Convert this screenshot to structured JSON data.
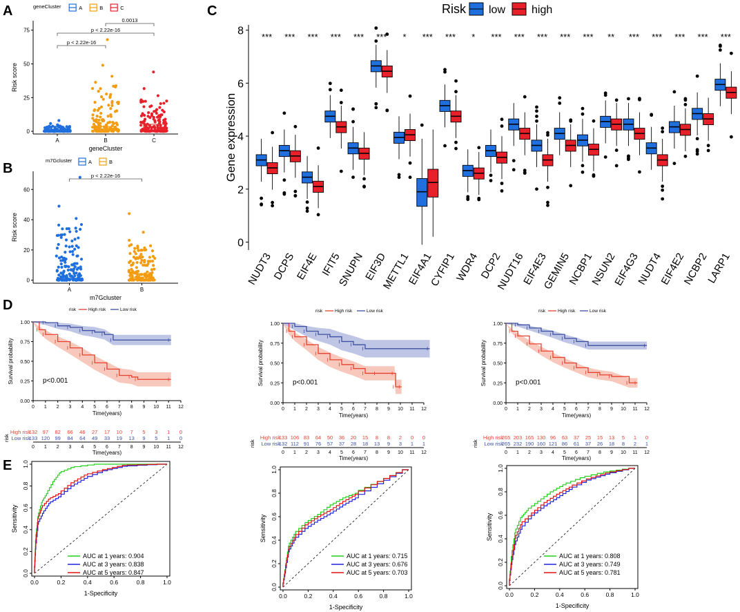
{
  "colors": {
    "blue": "#1f6fde",
    "orange": "#f39c12",
    "red": "#e8202a",
    "km_high": "#e8402e",
    "km_low": "#3d4fa0",
    "km_high_band": "#f4b6a4",
    "km_low_band": "#aab3dc",
    "roc_green": "#22d11a",
    "roc_blue": "#2020d8",
    "roc_red": "#e01010"
  },
  "chart_data": [
    {
      "panel": "A",
      "type": "scatter",
      "legend_title": "geneCluster",
      "legend": [
        "A",
        "B",
        "C"
      ],
      "categories": [
        "A",
        "B",
        "C"
      ],
      "xlabel": "geneCluster",
      "ylabel": "Risk score",
      "ylim": [
        -2,
        82
      ],
      "yticks": [
        0,
        25,
        50,
        75
      ],
      "medians": [
        0.8,
        1.8,
        3.0
      ],
      "q1": [
        0.3,
        0.6,
        0.9
      ],
      "q3": [
        1.2,
        3.6,
        5.2
      ],
      "maxima": [
        8,
        68,
        44
      ],
      "comparisons": [
        {
          "from": "A",
          "to": "B",
          "label": "p < 2.22e-16"
        },
        {
          "from": "A",
          "to": "C",
          "label": "p < 2.22e-16"
        },
        {
          "from": "B",
          "to": "C",
          "label": "0.0013"
        }
      ]
    },
    {
      "panel": "B",
      "type": "scatter",
      "legend_title": "m7Gcluster",
      "legend": [
        "A",
        "B"
      ],
      "categories": [
        "A",
        "B"
      ],
      "xlabel": "m7Gcluster",
      "ylabel": "Risk score",
      "ylim": [
        -2,
        72
      ],
      "yticks": [
        0,
        20,
        40,
        60
      ],
      "medians": [
        0.8,
        2.0
      ],
      "q1": [
        0.3,
        0.7
      ],
      "q3": [
        1.3,
        4.0
      ],
      "maxima": [
        68,
        44
      ],
      "comparisons": [
        {
          "from": "A",
          "to": "B",
          "label": "p < 2.22e-16"
        }
      ]
    },
    {
      "panel": "C",
      "type": "box",
      "legend_title": "Risk",
      "series": [
        "low",
        "high"
      ],
      "ylabel": "Gene expression",
      "ylim": [
        -0.3,
        8.2
      ],
      "yticks": [
        0,
        2,
        4,
        6,
        8
      ],
      "genes": [
        "NUDT3",
        "DCPS",
        "EIF4E",
        "IFIT5",
        "SNUPN",
        "EIF3D",
        "METTL1",
        "EIF4A1",
        "CYFIP1",
        "WDR4",
        "DCP2",
        "NUDT16",
        "EIF4E3",
        "GEMIN5",
        "NCBP1",
        "NSUN2",
        "EIF4G3",
        "NUDT4",
        "EIF4E2",
        "NCBP2",
        "LARP1"
      ],
      "significance": [
        "***",
        "***",
        "***",
        "***",
        "***",
        "***",
        "*",
        "***",
        "***",
        "*",
        "***",
        "***",
        "***",
        "***",
        "***",
        "**",
        "***",
        "***",
        "***",
        "***",
        "***"
      ],
      "low_median": [
        3.1,
        3.45,
        2.45,
        4.75,
        3.55,
        6.65,
        3.95,
        1.9,
        5.15,
        2.7,
        3.45,
        4.45,
        3.65,
        4.1,
        3.85,
        4.55,
        4.45,
        3.55,
        4.35,
        4.85,
        5.95
      ],
      "high_median": [
        2.8,
        3.25,
        2.1,
        4.35,
        3.35,
        6.45,
        4.05,
        2.25,
        4.75,
        2.6,
        3.2,
        4.1,
        3.1,
        3.65,
        3.5,
        4.45,
        4.1,
        3.1,
        4.25,
        4.65,
        5.65
      ]
    },
    {
      "panel": "D1",
      "type": "line",
      "title": "",
      "xlabel": "Time(years)",
      "ylabel": "Survival probability",
      "pvalue": "p<0.001",
      "legend_title": "risk",
      "legend": [
        "High risk",
        "Low risk"
      ],
      "xlim": [
        0,
        12
      ],
      "ylim": [
        0,
        1
      ],
      "yticks": [
        "0.00",
        "0.25",
        "0.50",
        "0.75",
        "1.00"
      ],
      "xticks": [
        0,
        1,
        2,
        3,
        4,
        5,
        6,
        7,
        8,
        9,
        10,
        11,
        12
      ],
      "high_curve": [
        [
          0,
          1
        ],
        [
          0.5,
          0.9
        ],
        [
          1,
          0.84
        ],
        [
          2,
          0.75
        ],
        [
          3,
          0.67
        ],
        [
          4,
          0.58
        ],
        [
          5,
          0.48
        ],
        [
          6,
          0.4
        ],
        [
          7,
          0.32
        ],
        [
          8,
          0.3
        ],
        [
          8.5,
          0.27
        ],
        [
          11.2,
          0.27
        ]
      ],
      "low_curve": [
        [
          0,
          1
        ],
        [
          1,
          0.99
        ],
        [
          2,
          0.95
        ],
        [
          3,
          0.93
        ],
        [
          4,
          0.89
        ],
        [
          5,
          0.87
        ],
        [
          5.8,
          0.84
        ],
        [
          6.5,
          0.77
        ],
        [
          11.2,
          0.77
        ]
      ],
      "high_band_halfwidth": 0.09,
      "low_band_halfwidth": 0.065,
      "risk_table": {
        "label": "risk",
        "rows": [
          {
            "name": "High risk",
            "counts": [
              "132",
              "97",
              "82",
              "66",
              "46",
              "27",
              "17",
              "10",
              "7",
              "5",
              "3",
              "1",
              "0"
            ]
          },
          {
            "name": "Low risk",
            "counts": [
              "133",
              "120",
              "99",
              "84",
              "64",
              "49",
              "33",
              "19",
              "13",
              "9",
              "5",
              "1",
              "0"
            ]
          }
        ]
      }
    },
    {
      "panel": "D2",
      "type": "line",
      "xlabel": "Time(years)",
      "ylabel": "Survival probability",
      "pvalue": "p<0.001",
      "legend_title": "risk",
      "legend": [
        "High risk",
        "Low risk"
      ],
      "xlim": [
        0,
        12
      ],
      "ylim": [
        0,
        1
      ],
      "yticks": [
        "0.00",
        "0.25",
        "0.50",
        "0.75",
        "1.00"
      ],
      "xticks": [
        0,
        1,
        2,
        3,
        4,
        5,
        6,
        7,
        8,
        9,
        10,
        11,
        12
      ],
      "high_curve": [
        [
          0,
          1
        ],
        [
          0.5,
          0.9
        ],
        [
          1,
          0.83
        ],
        [
          2,
          0.73
        ],
        [
          3,
          0.62
        ],
        [
          4,
          0.54
        ],
        [
          5,
          0.48
        ],
        [
          6,
          0.43
        ],
        [
          7,
          0.37
        ],
        [
          8,
          0.37
        ],
        [
          9.5,
          0.37
        ],
        [
          9.6,
          0.2
        ],
        [
          10.1,
          0.2
        ]
      ],
      "low_curve": [
        [
          0,
          1
        ],
        [
          1,
          0.96
        ],
        [
          2,
          0.9
        ],
        [
          3,
          0.86
        ],
        [
          4,
          0.83
        ],
        [
          5,
          0.77
        ],
        [
          6,
          0.73
        ],
        [
          7,
          0.68
        ],
        [
          12.5,
          0.68
        ]
      ],
      "high_band_halfwidth": 0.09,
      "low_band_halfwidth": 0.11,
      "risk_table": {
        "label": "risk",
        "rows": [
          {
            "name": "High risk",
            "counts": [
              "133",
              "106",
              "83",
              "64",
              "50",
              "36",
              "20",
              "15",
              "8",
              "8",
              "2",
              "0",
              "0"
            ]
          },
          {
            "name": "Low risk",
            "counts": [
              "132",
              "112",
              "91",
              "76",
              "57",
              "37",
              "28",
              "18",
              "13",
              "9",
              "3",
              "1",
              "1"
            ]
          }
        ]
      }
    },
    {
      "panel": "D3",
      "type": "line",
      "xlabel": "Time(years)",
      "ylabel": "Survival probability",
      "pvalue": "p<0.001",
      "legend_title": "risk",
      "legend": [
        "High risk",
        "Low risk"
      ],
      "xlim": [
        0,
        12
      ],
      "ylim": [
        0,
        1
      ],
      "yticks": [
        "0.00",
        "0.25",
        "0.50",
        "0.75",
        "1.00"
      ],
      "xticks": [
        0,
        1,
        2,
        3,
        4,
        5,
        6,
        7,
        8,
        9,
        10,
        11,
        12
      ],
      "high_curve": [
        [
          0,
          1
        ],
        [
          0.5,
          0.9
        ],
        [
          1,
          0.84
        ],
        [
          2,
          0.74
        ],
        [
          3,
          0.65
        ],
        [
          4,
          0.57
        ],
        [
          5,
          0.5
        ],
        [
          6,
          0.44
        ],
        [
          7,
          0.38
        ],
        [
          8,
          0.35
        ],
        [
          9,
          0.33
        ],
        [
          10.5,
          0.25
        ],
        [
          11.2,
          0.25
        ]
      ],
      "low_curve": [
        [
          0,
          1
        ],
        [
          1,
          0.98
        ],
        [
          2,
          0.94
        ],
        [
          3,
          0.9
        ],
        [
          4,
          0.86
        ],
        [
          5,
          0.81
        ],
        [
          6,
          0.77
        ],
        [
          7,
          0.72
        ],
        [
          12,
          0.72
        ]
      ],
      "high_band_halfwidth": 0.06,
      "low_band_halfwidth": 0.05,
      "risk_table": {
        "label": "risk",
        "rows": [
          {
            "name": "High risk",
            "counts": [
              "265",
              "203",
              "165",
              "130",
              "96",
              "63",
              "37",
              "25",
              "15",
              "13",
              "5",
              "1",
              "0"
            ]
          },
          {
            "name": "Low risk",
            "counts": [
              "265",
              "232",
              "190",
              "160",
              "121",
              "86",
              "61",
              "37",
              "26",
              "18",
              "8",
              "2",
              "1"
            ]
          }
        ]
      }
    },
    {
      "panel": "E1",
      "type": "line",
      "xlabel": "1-Specificity",
      "ylabel": "Sensitivity",
      "xlim": [
        0,
        1
      ],
      "ylim": [
        0,
        1
      ],
      "ticks": [
        "0.0",
        "0.2",
        "0.4",
        "0.6",
        "0.8",
        "1.0"
      ],
      "series": [
        {
          "name": "AUC at 1 years: 0.904",
          "points": [
            [
              0,
              0
            ],
            [
              0.01,
              0.3
            ],
            [
              0.03,
              0.52
            ],
            [
              0.06,
              0.65
            ],
            [
              0.1,
              0.73
            ],
            [
              0.15,
              0.84
            ],
            [
              0.2,
              0.92
            ],
            [
              0.3,
              0.97
            ],
            [
              0.5,
              1
            ],
            [
              1,
              1
            ]
          ]
        },
        {
          "name": "AUC at 3 years: 0.838",
          "points": [
            [
              0,
              0
            ],
            [
              0.01,
              0.22
            ],
            [
              0.03,
              0.45
            ],
            [
              0.07,
              0.55
            ],
            [
              0.12,
              0.64
            ],
            [
              0.2,
              0.7
            ],
            [
              0.3,
              0.8
            ],
            [
              0.4,
              0.87
            ],
            [
              0.55,
              0.94
            ],
            [
              0.7,
              0.98
            ],
            [
              1,
              1
            ]
          ]
        },
        {
          "name": "AUC at 5 years: 0.847",
          "points": [
            [
              0,
              0
            ],
            [
              0.01,
              0.25
            ],
            [
              0.03,
              0.5
            ],
            [
              0.06,
              0.6
            ],
            [
              0.12,
              0.68
            ],
            [
              0.2,
              0.73
            ],
            [
              0.3,
              0.83
            ],
            [
              0.4,
              0.9
            ],
            [
              0.55,
              0.95
            ],
            [
              0.7,
              0.99
            ],
            [
              1,
              1
            ]
          ]
        }
      ]
    },
    {
      "panel": "E2",
      "type": "line",
      "xlabel": "1-Specificity",
      "ylabel": "Sensitivity",
      "xlim": [
        0,
        1
      ],
      "ylim": [
        0,
        1
      ],
      "ticks": [
        "0.0",
        "0.2",
        "0.4",
        "0.6",
        "0.8",
        "1.0"
      ],
      "series": [
        {
          "name": "AUC at 1 years: 0.715",
          "points": [
            [
              0,
              0
            ],
            [
              0.02,
              0.15
            ],
            [
              0.05,
              0.35
            ],
            [
              0.1,
              0.45
            ],
            [
              0.2,
              0.55
            ],
            [
              0.3,
              0.62
            ],
            [
              0.4,
              0.7
            ],
            [
              0.5,
              0.76
            ],
            [
              0.6,
              0.8
            ],
            [
              0.8,
              0.9
            ],
            [
              1,
              1
            ]
          ]
        },
        {
          "name": "AUC at 3 years: 0.676",
          "points": [
            [
              0,
              0
            ],
            [
              0.02,
              0.12
            ],
            [
              0.05,
              0.3
            ],
            [
              0.1,
              0.4
            ],
            [
              0.2,
              0.5
            ],
            [
              0.3,
              0.57
            ],
            [
              0.4,
              0.63
            ],
            [
              0.5,
              0.7
            ],
            [
              0.6,
              0.76
            ],
            [
              0.8,
              0.88
            ],
            [
              1,
              1
            ]
          ]
        },
        {
          "name": "AUC at 5 years: 0.703",
          "points": [
            [
              0,
              0
            ],
            [
              0.02,
              0.14
            ],
            [
              0.05,
              0.32
            ],
            [
              0.1,
              0.42
            ],
            [
              0.2,
              0.53
            ],
            [
              0.3,
              0.6
            ],
            [
              0.4,
              0.66
            ],
            [
              0.5,
              0.73
            ],
            [
              0.6,
              0.79
            ],
            [
              0.8,
              0.9
            ],
            [
              1,
              1
            ]
          ]
        }
      ]
    },
    {
      "panel": "E3",
      "type": "line",
      "xlabel": "1-Specificity",
      "ylabel": "Sensitivity",
      "xlim": [
        0,
        1
      ],
      "ylim": [
        0,
        1
      ],
      "ticks": [
        "0.0",
        "0.2",
        "0.4",
        "0.6",
        "0.8",
        "1.0"
      ],
      "series": [
        {
          "name": "AUC at 1 years: 0.808",
          "points": [
            [
              0,
              0
            ],
            [
              0.02,
              0.25
            ],
            [
              0.05,
              0.45
            ],
            [
              0.1,
              0.58
            ],
            [
              0.15,
              0.64
            ],
            [
              0.25,
              0.72
            ],
            [
              0.35,
              0.8
            ],
            [
              0.45,
              0.86
            ],
            [
              0.6,
              0.92
            ],
            [
              0.8,
              0.97
            ],
            [
              1,
              1
            ]
          ]
        },
        {
          "name": "AUC at 3 years: 0.749",
          "points": [
            [
              0,
              0
            ],
            [
              0.02,
              0.18
            ],
            [
              0.05,
              0.35
            ],
            [
              0.1,
              0.48
            ],
            [
              0.2,
              0.6
            ],
            [
              0.3,
              0.68
            ],
            [
              0.4,
              0.75
            ],
            [
              0.5,
              0.82
            ],
            [
              0.65,
              0.9
            ],
            [
              0.8,
              0.95
            ],
            [
              1,
              1
            ]
          ]
        },
        {
          "name": "AUC at 5 years: 0.781",
          "points": [
            [
              0,
              0
            ],
            [
              0.02,
              0.2
            ],
            [
              0.05,
              0.4
            ],
            [
              0.1,
              0.52
            ],
            [
              0.2,
              0.62
            ],
            [
              0.3,
              0.71
            ],
            [
              0.4,
              0.78
            ],
            [
              0.5,
              0.84
            ],
            [
              0.65,
              0.91
            ],
            [
              0.8,
              0.96
            ],
            [
              1,
              1
            ]
          ]
        }
      ]
    }
  ],
  "labels": {
    "A": "A",
    "B": "B",
    "C": "C",
    "D": "D",
    "E": "E"
  }
}
